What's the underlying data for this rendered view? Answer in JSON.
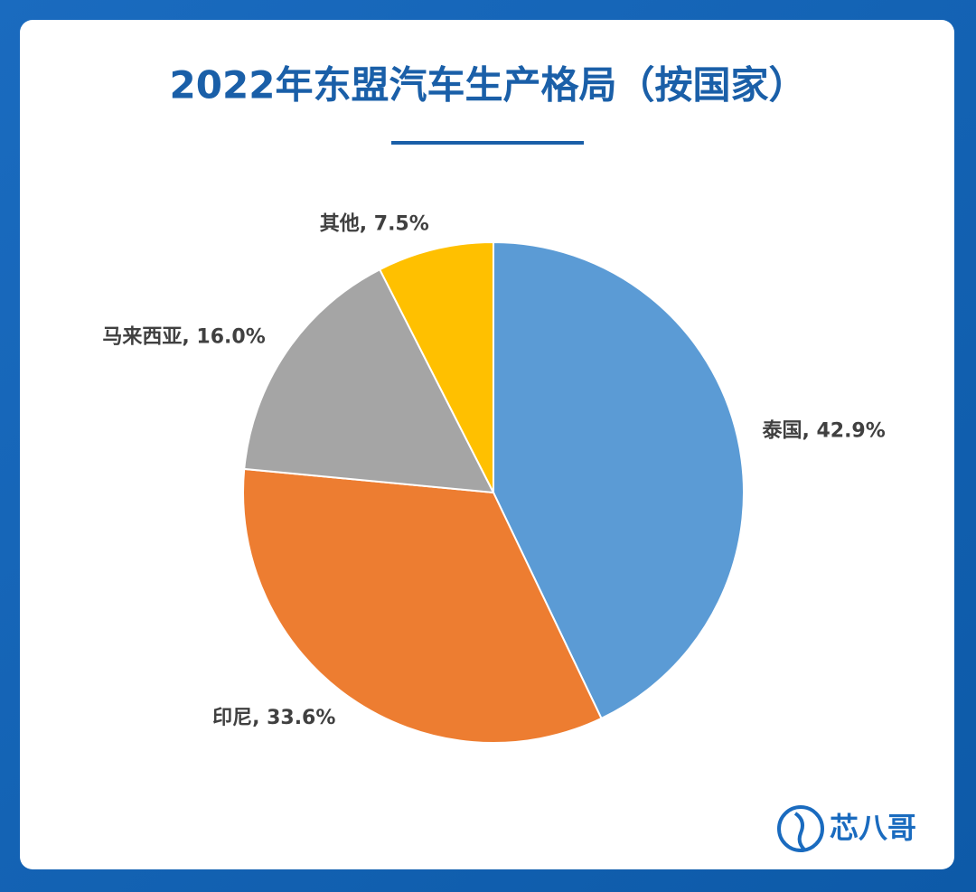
{
  "chart_data": {
    "type": "pie",
    "title": "2022年东盟汽车生产格局（按国家）",
    "values": [
      42.9,
      33.6,
      16.0,
      7.5
    ],
    "value_labels": [
      "泰国, 42.9%",
      "印尼, 33.6%",
      "马来西亚, 16.0%",
      "其他, 7.5%"
    ],
    "colors": [
      "#5b9bd5",
      "#ed7d31",
      "#a5a5a5",
      "#ffc000"
    ]
  },
  "brand": "芯八哥"
}
